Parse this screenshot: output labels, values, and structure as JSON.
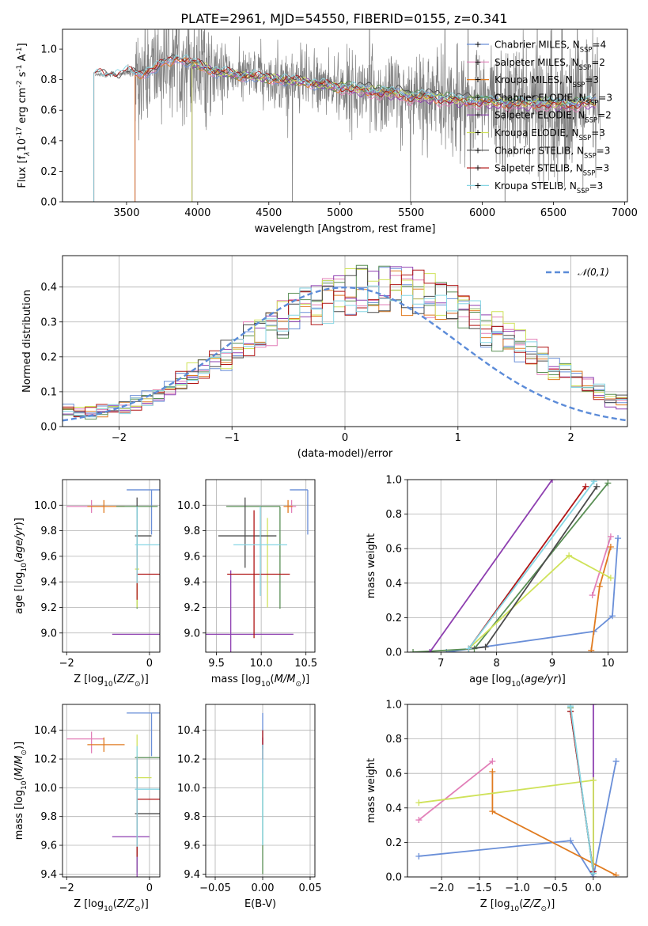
{
  "title": "PLATE=2961, MJD=54550, FIBERID=0155, z=0.341",
  "colors": {
    "spectrum": "#808080",
    "chabrier_miles": "#6a8fd8",
    "salpeter_miles": "#e27fb8",
    "kroupa_miles": "#e07b20",
    "chabrier_elodie": "#5a8f55",
    "salpeter_elodie": "#8e3fb0",
    "kroupa_elodie": "#cfe25a",
    "chabrier_stelib": "#4c4c4c",
    "salpeter_stelib": "#b01616",
    "kroupa_stelib": "#86d6e4",
    "normal": "#5b8bd8"
  },
  "chart_data": [
    {
      "id": "spectrum",
      "type": "line",
      "xlabel": "wavelength [Angstrom, rest frame]",
      "ylabel": "Flux [f$_\\lambda$10$^{-17}$ erg cm$^{-2}$ s$^{-1}$ A$^{-1}$]",
      "xlim": [
        3050,
        7020
      ],
      "ylim": [
        0,
        1.13
      ],
      "xticks": [
        "3500",
        "4000",
        "4500",
        "5000",
        "5500",
        "6000",
        "6500",
        "7000"
      ],
      "yticks": [
        "0.0",
        "0.2",
        "0.4",
        "0.6",
        "0.8",
        "1.0"
      ],
      "grid": false,
      "legend_position": "top-right",
      "legend": [
        {
          "name": "Chabrier MILES, N$_{SSP}$=4",
          "color": "#6a8fd8"
        },
        {
          "name": "Salpeter MILES, N$_{SSP}$=2",
          "color": "#e27fb8"
        },
        {
          "name": "Kroupa MILES, N$_{SSP}$=3",
          "color": "#e07b20"
        },
        {
          "name": "Chabrier ELODIE, N$_{SSP}$=3",
          "color": "#5a8f55"
        },
        {
          "name": "Salpeter ELODIE, N$_{SSP}$=2",
          "color": "#8e3fb0"
        },
        {
          "name": "Kroupa ELODIE, N$_{SSP}$=3",
          "color": "#cfe25a"
        },
        {
          "name": "Chabrier STELIB, N$_{SSP}$=3",
          "color": "#4c4c4c"
        },
        {
          "name": "Salpeter STELIB, N$_{SSP}$=3",
          "color": "#b01616"
        },
        {
          "name": "Kroupa STELIB, N$_{SSP}$=3",
          "color": "#86d6e4"
        }
      ],
      "model_x": [
        3270,
        3300,
        3350,
        3400,
        3450,
        3500,
        3550,
        3600,
        3650,
        3700,
        3750,
        3800,
        3850,
        3900,
        3950,
        4000,
        4050,
        4100,
        4150,
        4200,
        4300,
        4400,
        4500,
        4600,
        4700,
        4800,
        4900,
        5000,
        5100,
        5200,
        5300,
        5400,
        5500,
        5600,
        5700,
        5800,
        5900,
        6000,
        6100,
        6200,
        6300,
        6400,
        6500,
        6600,
        6700,
        6800
      ],
      "model_y": [
        0.82,
        0.84,
        0.83,
        0.84,
        0.83,
        0.85,
        0.84,
        0.84,
        0.86,
        0.87,
        0.9,
        0.92,
        0.95,
        0.93,
        0.91,
        0.9,
        0.88,
        0.86,
        0.85,
        0.84,
        0.83,
        0.82,
        0.81,
        0.8,
        0.79,
        0.78,
        0.76,
        0.75,
        0.73,
        0.72,
        0.71,
        0.7,
        0.68,
        0.68,
        0.67,
        0.66,
        0.65,
        0.65,
        0.64,
        0.64,
        0.63,
        0.64,
        0.63,
        0.63,
        0.64,
        0.64
      ],
      "model_starts": {
        "chabrier_miles": 3560,
        "salpeter_miles": 3560,
        "kroupa_miles": 3560,
        "chabrier_elodie": 3960,
        "salpeter_elodie": 3960,
        "kroupa_elodie": 3960,
        "chabrier_stelib": 3270,
        "salpeter_stelib": 3270,
        "kroupa_stelib": 3270
      }
    },
    {
      "id": "residual_distribution",
      "type": "histogram",
      "xlabel": "(data-model)/error",
      "ylabel": "Normed distribution",
      "xlim": [
        -2.5,
        2.5
      ],
      "ylim": [
        0,
        0.49
      ],
      "xticks": [
        "−2",
        "−1",
        "0",
        "1",
        "2"
      ],
      "yticks": [
        "0.0",
        "0.1",
        "0.2",
        "0.3",
        "0.4"
      ],
      "grid": true,
      "legend_position": "top-right",
      "legend": [
        {
          "name": "$\\mathcal{N}(0,1)$",
          "color": "#5b8bd8"
        }
      ],
      "bin_width": 0.1,
      "bin_start": -2.5,
      "base_profile": [
        0.05,
        0.045,
        0.04,
        0.045,
        0.05,
        0.06,
        0.07,
        0.08,
        0.095,
        0.11,
        0.13,
        0.15,
        0.17,
        0.19,
        0.21,
        0.23,
        0.25,
        0.27,
        0.29,
        0.31,
        0.33,
        0.345,
        0.36,
        0.37,
        0.38,
        0.39,
        0.395,
        0.4,
        0.4,
        0.395,
        0.39,
        0.38,
        0.37,
        0.36,
        0.345,
        0.33,
        0.31,
        0.29,
        0.27,
        0.25,
        0.23,
        0.21,
        0.19,
        0.17,
        0.15,
        0.13,
        0.11,
        0.095,
        0.08,
        0.07
      ]
    },
    {
      "id": "Z_vs_age",
      "type": "errorbar",
      "xlabel": "Z [log$_{10}$($Z/Z_\\odot$)]",
      "ylabel": "age  [log$_{10}$($age/yr$)]",
      "xlim": [
        -2.1,
        0.25
      ],
      "ylim": [
        8.85,
        10.2
      ],
      "xticks": [
        "−2",
        "0"
      ],
      "yticks": [
        "9.0",
        "9.2",
        "9.4",
        "9.6",
        "9.8",
        "10.0"
      ],
      "grid": true,
      "points": [
        {
          "s": "chabrier_miles",
          "x": 0.05,
          "y": 10.12,
          "xe": [
            0.6,
            0.35
          ],
          "ye": [
            0.35,
            0.0
          ]
        },
        {
          "s": "salpeter_miles",
          "x": -1.4,
          "y": 9.99,
          "xe": [
            0.6,
            0.3
          ],
          "ye": [
            0.05,
            0.05
          ]
        },
        {
          "s": "kroupa_miles",
          "x": -1.1,
          "y": 9.99,
          "xe": [
            0.4,
            0.5
          ],
          "ye": [
            0.05,
            0.05
          ]
        },
        {
          "s": "chabrier_elodie",
          "x": -0.3,
          "y": 9.99,
          "xe": [
            0.5,
            0.5
          ],
          "ye": [
            0.8,
            0.0
          ]
        },
        {
          "s": "salpeter_elodie",
          "x": 0.0,
          "y": 8.99,
          "xe": [
            0.9,
            0.3
          ],
          "ye": [
            0.0,
            0.0
          ]
        },
        {
          "s": "kroupa_elodie",
          "x": -0.3,
          "y": 9.5,
          "xe": [
            0.05,
            0.05
          ],
          "ye": [
            0.3,
            0.4
          ]
        },
        {
          "s": "chabrier_stelib",
          "x": -0.3,
          "y": 9.76,
          "xe": [
            0.05,
            0.35
          ],
          "ye": [
            0.15,
            0.3
          ]
        },
        {
          "s": "salpeter_stelib",
          "x": -0.3,
          "y": 9.46,
          "xe": [
            0.0,
            0.6
          ],
          "ye": [
            0.2,
            0.2
          ]
        },
        {
          "s": "kroupa_stelib",
          "x": -0.3,
          "y": 9.69,
          "xe": [
            0.05,
            0.6
          ],
          "ye": [
            0.3,
            0.3
          ]
        }
      ]
    },
    {
      "id": "mass_vs_age",
      "type": "errorbar",
      "xlabel": "mass [log$_{10}$($M/M_\\odot$)]",
      "ylabel": "",
      "xlim": [
        9.38,
        10.6
      ],
      "ylim": [
        8.85,
        10.2
      ],
      "xticks": [
        "9.5",
        "10.0",
        "10.5"
      ],
      "yticks": [
        "9.0",
        "9.2",
        "9.4",
        "9.6",
        "9.8",
        "10.0"
      ],
      "grid": true,
      "points": [
        {
          "s": "chabrier_miles",
          "x": 10.52,
          "y": 10.12,
          "xe": [
            0.2,
            0.0
          ],
          "ye": [
            0.35,
            0.0
          ]
        },
        {
          "s": "salpeter_miles",
          "x": 10.34,
          "y": 9.99,
          "xe": [
            0.05,
            0.05
          ],
          "ye": [
            0.05,
            0.05
          ]
        },
        {
          "s": "kroupa_miles",
          "x": 10.3,
          "y": 9.99,
          "xe": [
            0.05,
            0.05
          ],
          "ye": [
            0.05,
            0.05
          ]
        },
        {
          "s": "chabrier_elodie",
          "x": 10.21,
          "y": 9.99,
          "xe": [
            0.6,
            0.0
          ],
          "ye": [
            0.8,
            0.0
          ]
        },
        {
          "s": "salpeter_elodie",
          "x": 9.66,
          "y": 8.99,
          "xe": [
            0.3,
            0.7
          ],
          "ye": [
            0.5,
            0.5
          ]
        },
        {
          "s": "kroupa_elodie",
          "x": 10.07,
          "y": 9.6,
          "xe": [
            0.0,
            0.0
          ],
          "ye": [
            0.4,
            0.3
          ]
        },
        {
          "s": "chabrier_stelib",
          "x": 9.82,
          "y": 9.76,
          "xe": [
            0.3,
            0.35
          ],
          "ye": [
            0.25,
            0.3
          ]
        },
        {
          "s": "salpeter_stelib",
          "x": 9.92,
          "y": 9.46,
          "xe": [
            0.3,
            0.4
          ],
          "ye": [
            0.5,
            0.5
          ]
        },
        {
          "s": "kroupa_stelib",
          "x": 9.99,
          "y": 9.69,
          "xe": [
            0.3,
            0.3
          ],
          "ye": [
            0.4,
            0.3
          ]
        }
      ]
    },
    {
      "id": "age_mass_weight",
      "type": "line",
      "xlabel": "age  [log$_{10}$($age/yr$)]",
      "ylabel": "mass weight",
      "xlim": [
        6.4,
        10.35
      ],
      "ylim": [
        0,
        1.0
      ],
      "xticks": [
        "7",
        "8",
        "9",
        "10"
      ],
      "yticks": [
        "0.0",
        "0.2",
        "0.4",
        "0.6",
        "0.8",
        "1.0"
      ],
      "grid": true,
      "series": [
        {
          "s": "chabrier_miles",
          "x": [
            7.1,
            9.75,
            10.08,
            10.18
          ],
          "y": [
            0.0,
            0.12,
            0.21,
            0.66
          ]
        },
        {
          "s": "salpeter_miles",
          "x": [
            9.72,
            10.05
          ],
          "y": [
            0.33,
            0.67
          ]
        },
        {
          "s": "kroupa_miles",
          "x": [
            9.7,
            9.85,
            10.05
          ],
          "y": [
            0.01,
            0.38,
            0.61
          ]
        },
        {
          "s": "chabrier_elodie",
          "x": [
            6.5,
            7.6,
            10.0
          ],
          "y": [
            0.0,
            0.02,
            0.98
          ]
        },
        {
          "s": "salpeter_elodie",
          "x": [
            6.8,
            9.0
          ],
          "y": [
            0.0,
            1.0
          ]
        },
        {
          "s": "kroupa_elodie",
          "x": [
            7.5,
            9.3,
            10.05
          ],
          "y": [
            0.02,
            0.56,
            0.43
          ]
        },
        {
          "s": "chabrier_stelib",
          "x": [
            7.5,
            7.8,
            9.8
          ],
          "y": [
            0.02,
            0.03,
            0.96
          ]
        },
        {
          "s": "salpeter_stelib",
          "x": [
            7.5,
            9.6
          ],
          "y": [
            0.02,
            0.96
          ]
        },
        {
          "s": "kroupa_stelib",
          "x": [
            7.5,
            9.75
          ],
          "y": [
            0.02,
            0.99
          ]
        }
      ]
    },
    {
      "id": "Z_vs_mass",
      "type": "errorbar",
      "xlabel": "Z [log$_{10}$($Z/Z_\\odot$)]",
      "ylabel": "mass [log$_{10}$($M/M_\\odot$)]",
      "xlim": [
        -2.1,
        0.25
      ],
      "ylim": [
        9.38,
        10.58
      ],
      "xticks": [
        "−2",
        "0"
      ],
      "yticks": [
        "9.4",
        "9.6",
        "9.8",
        "10.0",
        "10.2",
        "10.4"
      ],
      "grid": true,
      "points": [
        {
          "s": "chabrier_miles",
          "x": 0.05,
          "y": 10.52,
          "xe": [
            0.6,
            0.35
          ],
          "ye": [
            0.3,
            0.0
          ]
        },
        {
          "s": "salpeter_miles",
          "x": -1.4,
          "y": 10.34,
          "xe": [
            0.6,
            0.3
          ],
          "ye": [
            0.1,
            0.05
          ]
        },
        {
          "s": "kroupa_miles",
          "x": -1.1,
          "y": 10.3,
          "xe": [
            0.4,
            0.5
          ],
          "ye": [
            0.05,
            0.05
          ]
        },
        {
          "s": "chabrier_elodie",
          "x": -0.3,
          "y": 10.21,
          "xe": [
            0.05,
            0.6
          ],
          "ye": [
            0.8,
            0.0
          ]
        },
        {
          "s": "salpeter_elodie",
          "x": -0.3,
          "y": 9.66,
          "xe": [
            0.6,
            0.3
          ],
          "ye": [
            0.3,
            0.4
          ]
        },
        {
          "s": "kroupa_elodie",
          "x": -0.3,
          "y": 10.07,
          "xe": [
            0.05,
            0.35
          ],
          "ye": [
            0.3,
            0.3
          ]
        },
        {
          "s": "chabrier_stelib",
          "x": -0.3,
          "y": 9.82,
          "xe": [
            0.05,
            0.6
          ],
          "ye": [
            0.3,
            0.3
          ]
        },
        {
          "s": "salpeter_stelib",
          "x": -0.3,
          "y": 9.92,
          "xe": [
            0.0,
            0.6
          ],
          "ye": [
            0.4,
            0.3
          ]
        },
        {
          "s": "kroupa_stelib",
          "x": -0.3,
          "y": 9.99,
          "xe": [
            0.05,
            0.6
          ],
          "ye": [
            0.4,
            0.3
          ]
        }
      ]
    },
    {
      "id": "EBV_vs_mass",
      "type": "errorbar",
      "xlabel": "E(B-V)",
      "ylabel": "",
      "xlim": [
        -0.06,
        0.055
      ],
      "ylim": [
        9.38,
        10.58
      ],
      "xticks": [
        "−0.05",
        "0.00",
        "0.05"
      ],
      "yticks": [
        "9.4",
        "9.6",
        "9.8",
        "10.0",
        "10.2",
        "10.4"
      ],
      "grid": true,
      "points": [
        {
          "s": "chabrier_miles",
          "x": 0.0,
          "y": 10.52,
          "xe": [
            0,
            0
          ],
          "ye": [
            0.25,
            0.0
          ]
        },
        {
          "s": "salpeter_elodie",
          "x": 0.0,
          "y": 10.3,
          "xe": [
            0,
            0
          ],
          "ye": [
            0.2,
            0.05
          ]
        },
        {
          "s": "salpeter_stelib",
          "x": 0.0,
          "y": 10.3,
          "xe": [
            0,
            0
          ],
          "ye": [
            0.1,
            0.1
          ]
        },
        {
          "s": "chabrier_elodie",
          "x": 0.0,
          "y": 10.1,
          "xe": [
            0,
            0
          ],
          "ye": [
            0.7,
            0.0
          ]
        },
        {
          "s": "kroupa_stelib",
          "x": 0.0,
          "y": 10.0,
          "xe": [
            0,
            0
          ],
          "ye": [
            0.4,
            0.3
          ]
        }
      ]
    },
    {
      "id": "Z_mass_weight",
      "type": "line",
      "xlabel": "Z [log$_{10}$($Z/Z_\\odot$)]",
      "ylabel": "mass weight",
      "xlim": [
        -2.45,
        0.45
      ],
      "ylim": [
        0,
        1.0
      ],
      "xticks": [
        "−2.0",
        "−1.5",
        "−1.0",
        "−0.5",
        "0.0"
      ],
      "yticks": [
        "0.0",
        "0.2",
        "0.4",
        "0.6",
        "0.8",
        "1.0"
      ],
      "grid": true,
      "series": [
        {
          "s": "chabrier_miles",
          "x": [
            -2.3,
            -0.3,
            0.0,
            0.3
          ],
          "y": [
            0.12,
            0.21,
            0.0,
            0.67
          ]
        },
        {
          "s": "salpeter_miles",
          "x": [
            -2.3,
            -1.33
          ],
          "y": [
            0.33,
            0.67
          ]
        },
        {
          "s": "kroupa_miles",
          "x": [
            -1.33,
            -1.33,
            0.3
          ],
          "y": [
            0.61,
            0.38,
            0.01
          ]
        },
        {
          "s": "chabrier_elodie",
          "x": [
            -0.3,
            0.0
          ],
          "y": [
            0.98,
            0.02
          ]
        },
        {
          "s": "salpeter_elodie",
          "x": [
            0.0,
            0.0
          ],
          "y": [
            0.0,
            1.0
          ]
        },
        {
          "s": "kroupa_elodie",
          "x": [
            -2.3,
            0.0,
            0.0
          ],
          "y": [
            0.43,
            0.56,
            0.02
          ]
        },
        {
          "s": "chabrier_stelib",
          "x": [
            -0.3,
            0.0
          ],
          "y": [
            0.96,
            0.03
          ]
        },
        {
          "s": "salpeter_stelib",
          "x": [
            -0.3,
            0.0
          ],
          "y": [
            0.96,
            0.03
          ]
        },
        {
          "s": "kroupa_stelib",
          "x": [
            -0.3,
            0.0
          ],
          "y": [
            0.99,
            0.02
          ]
        }
      ]
    }
  ]
}
